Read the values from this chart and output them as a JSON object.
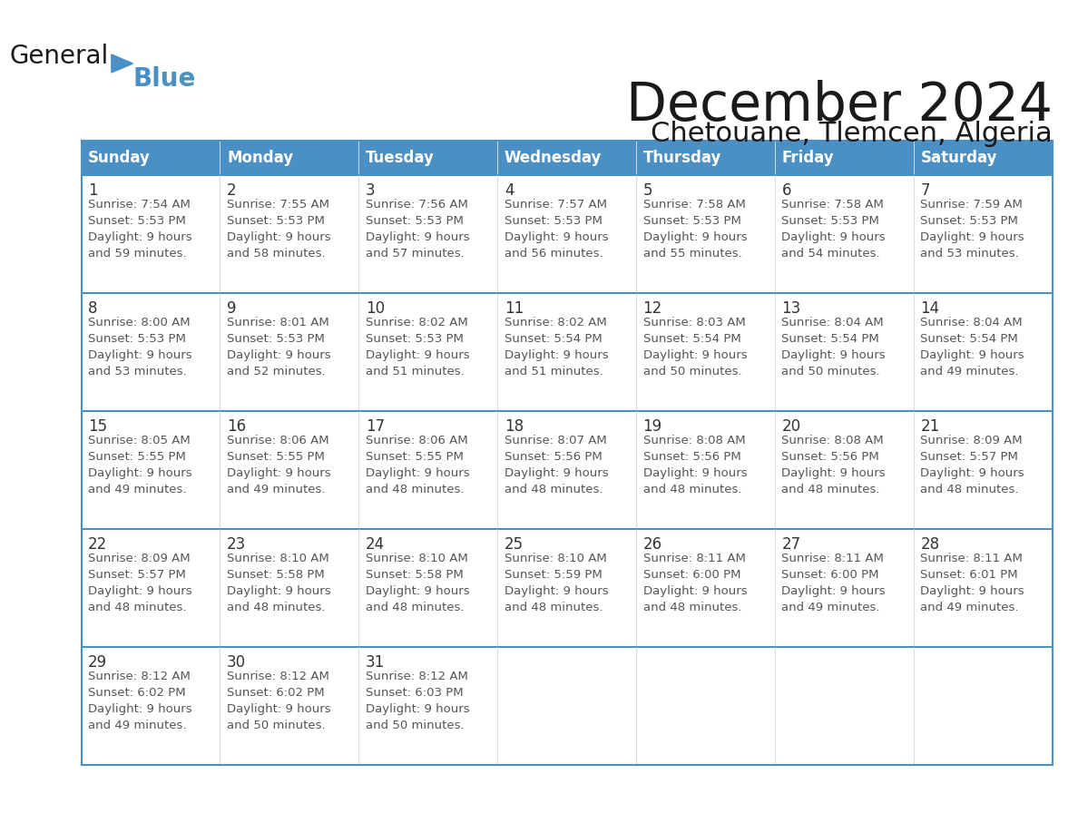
{
  "title": "December 2024",
  "subtitle": "Chetouane, Tlemcen, Algeria",
  "header_bg_color": "#4A90C4",
  "header_text_color": "#FFFFFF",
  "cell_bg_color": "#FFFFFF",
  "alt_row_bg": "#F8F8F8",
  "border_color": "#4A90C4",
  "text_color": "#333333",
  "day_number_color": "#333333",
  "days_of_week": [
    "Sunday",
    "Monday",
    "Tuesday",
    "Wednesday",
    "Thursday",
    "Friday",
    "Saturday"
  ],
  "weeks": [
    [
      {
        "day": 1,
        "sunrise": "7:54 AM",
        "sunset": "5:53 PM",
        "daylight": "9 hours\nand 59 minutes."
      },
      {
        "day": 2,
        "sunrise": "7:55 AM",
        "sunset": "5:53 PM",
        "daylight": "9 hours\nand 58 minutes."
      },
      {
        "day": 3,
        "sunrise": "7:56 AM",
        "sunset": "5:53 PM",
        "daylight": "9 hours\nand 57 minutes."
      },
      {
        "day": 4,
        "sunrise": "7:57 AM",
        "sunset": "5:53 PM",
        "daylight": "9 hours\nand 56 minutes."
      },
      {
        "day": 5,
        "sunrise": "7:58 AM",
        "sunset": "5:53 PM",
        "daylight": "9 hours\nand 55 minutes."
      },
      {
        "day": 6,
        "sunrise": "7:58 AM",
        "sunset": "5:53 PM",
        "daylight": "9 hours\nand 54 minutes."
      },
      {
        "day": 7,
        "sunrise": "7:59 AM",
        "sunset": "5:53 PM",
        "daylight": "9 hours\nand 53 minutes."
      }
    ],
    [
      {
        "day": 8,
        "sunrise": "8:00 AM",
        "sunset": "5:53 PM",
        "daylight": "9 hours\nand 53 minutes."
      },
      {
        "day": 9,
        "sunrise": "8:01 AM",
        "sunset": "5:53 PM",
        "daylight": "9 hours\nand 52 minutes."
      },
      {
        "day": 10,
        "sunrise": "8:02 AM",
        "sunset": "5:53 PM",
        "daylight": "9 hours\nand 51 minutes."
      },
      {
        "day": 11,
        "sunrise": "8:02 AM",
        "sunset": "5:54 PM",
        "daylight": "9 hours\nand 51 minutes."
      },
      {
        "day": 12,
        "sunrise": "8:03 AM",
        "sunset": "5:54 PM",
        "daylight": "9 hours\nand 50 minutes."
      },
      {
        "day": 13,
        "sunrise": "8:04 AM",
        "sunset": "5:54 PM",
        "daylight": "9 hours\nand 50 minutes."
      },
      {
        "day": 14,
        "sunrise": "8:04 AM",
        "sunset": "5:54 PM",
        "daylight": "9 hours\nand 49 minutes."
      }
    ],
    [
      {
        "day": 15,
        "sunrise": "8:05 AM",
        "sunset": "5:55 PM",
        "daylight": "9 hours\nand 49 minutes."
      },
      {
        "day": 16,
        "sunrise": "8:06 AM",
        "sunset": "5:55 PM",
        "daylight": "9 hours\nand 49 minutes."
      },
      {
        "day": 17,
        "sunrise": "8:06 AM",
        "sunset": "5:55 PM",
        "daylight": "9 hours\nand 48 minutes."
      },
      {
        "day": 18,
        "sunrise": "8:07 AM",
        "sunset": "5:56 PM",
        "daylight": "9 hours\nand 48 minutes."
      },
      {
        "day": 19,
        "sunrise": "8:08 AM",
        "sunset": "5:56 PM",
        "daylight": "9 hours\nand 48 minutes."
      },
      {
        "day": 20,
        "sunrise": "8:08 AM",
        "sunset": "5:56 PM",
        "daylight": "9 hours\nand 48 minutes."
      },
      {
        "day": 21,
        "sunrise": "8:09 AM",
        "sunset": "5:57 PM",
        "daylight": "9 hours\nand 48 minutes."
      }
    ],
    [
      {
        "day": 22,
        "sunrise": "8:09 AM",
        "sunset": "5:57 PM",
        "daylight": "9 hours\nand 48 minutes."
      },
      {
        "day": 23,
        "sunrise": "8:10 AM",
        "sunset": "5:58 PM",
        "daylight": "9 hours\nand 48 minutes."
      },
      {
        "day": 24,
        "sunrise": "8:10 AM",
        "sunset": "5:58 PM",
        "daylight": "9 hours\nand 48 minutes."
      },
      {
        "day": 25,
        "sunrise": "8:10 AM",
        "sunset": "5:59 PM",
        "daylight": "9 hours\nand 48 minutes."
      },
      {
        "day": 26,
        "sunrise": "8:11 AM",
        "sunset": "6:00 PM",
        "daylight": "9 hours\nand 48 minutes."
      },
      {
        "day": 27,
        "sunrise": "8:11 AM",
        "sunset": "6:00 PM",
        "daylight": "9 hours\nand 49 minutes."
      },
      {
        "day": 28,
        "sunrise": "8:11 AM",
        "sunset": "6:01 PM",
        "daylight": "9 hours\nand 49 minutes."
      }
    ],
    [
      {
        "day": 29,
        "sunrise": "8:12 AM",
        "sunset": "6:02 PM",
        "daylight": "9 hours\nand 49 minutes."
      },
      {
        "day": 30,
        "sunrise": "8:12 AM",
        "sunset": "6:02 PM",
        "daylight": "9 hours\nand 50 minutes."
      },
      {
        "day": 31,
        "sunrise": "8:12 AM",
        "sunset": "6:03 PM",
        "daylight": "9 hours\nand 50 minutes."
      },
      null,
      null,
      null,
      null
    ]
  ],
  "logo_text_general": "General",
  "logo_text_blue": "Blue",
  "logo_triangle_color": "#4A90C4"
}
